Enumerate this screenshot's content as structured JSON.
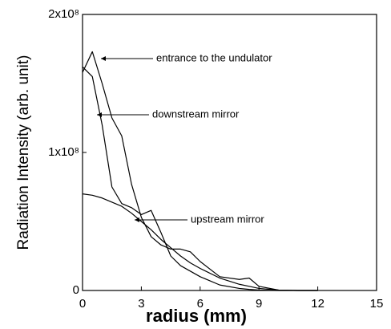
{
  "chart_data": {
    "type": "line",
    "x_label": "radius (mm)",
    "y_label": "Radiation Intensity (arb. unit)",
    "x": [
      0,
      0.5,
      1,
      1.5,
      2,
      2.5,
      3,
      3.5,
      4,
      4.5,
      5,
      5.5,
      6,
      7,
      8,
      8.5,
      9,
      10,
      11,
      12
    ],
    "series": [
      {
        "name": "entrance to the undulator",
        "color": "#000000",
        "values": [
          158000000,
          173000000,
          150000000,
          125000000,
          112000000,
          77000000,
          53000000,
          39000000,
          33000000,
          30000000,
          30000000,
          28000000,
          21000000,
          10000000,
          8000000,
          9000000,
          3000000,
          300000,
          0,
          0
        ]
      },
      {
        "name": "downstream mirror",
        "color": "#000000",
        "values": [
          162000000,
          155000000,
          120000000,
          75000000,
          63000000,
          60000000,
          55000000,
          58000000,
          42000000,
          25000000,
          18000000,
          14000000,
          10000000,
          4000000,
          1500000,
          800000,
          300000,
          0,
          0,
          0
        ]
      },
      {
        "name": "upstream mirror",
        "color": "#000000",
        "values": [
          70000000,
          69000000,
          67000000,
          64000000,
          61000000,
          56000000,
          50000000,
          44000000,
          37000000,
          31000000,
          25000000,
          20000000,
          16000000,
          9000000,
          4500000,
          3000000,
          1500000,
          300000,
          0,
          0
        ]
      }
    ],
    "xlim": [
      0,
      15
    ],
    "xticks": [
      0,
      3,
      6,
      9,
      12,
      15
    ],
    "ylim": [
      0,
      200000000
    ],
    "yticks": [
      0,
      {
        "value": 100000000,
        "label": "1x10⁸"
      },
      {
        "value": 200000000,
        "label": "2x10⁸"
      }
    ]
  }
}
